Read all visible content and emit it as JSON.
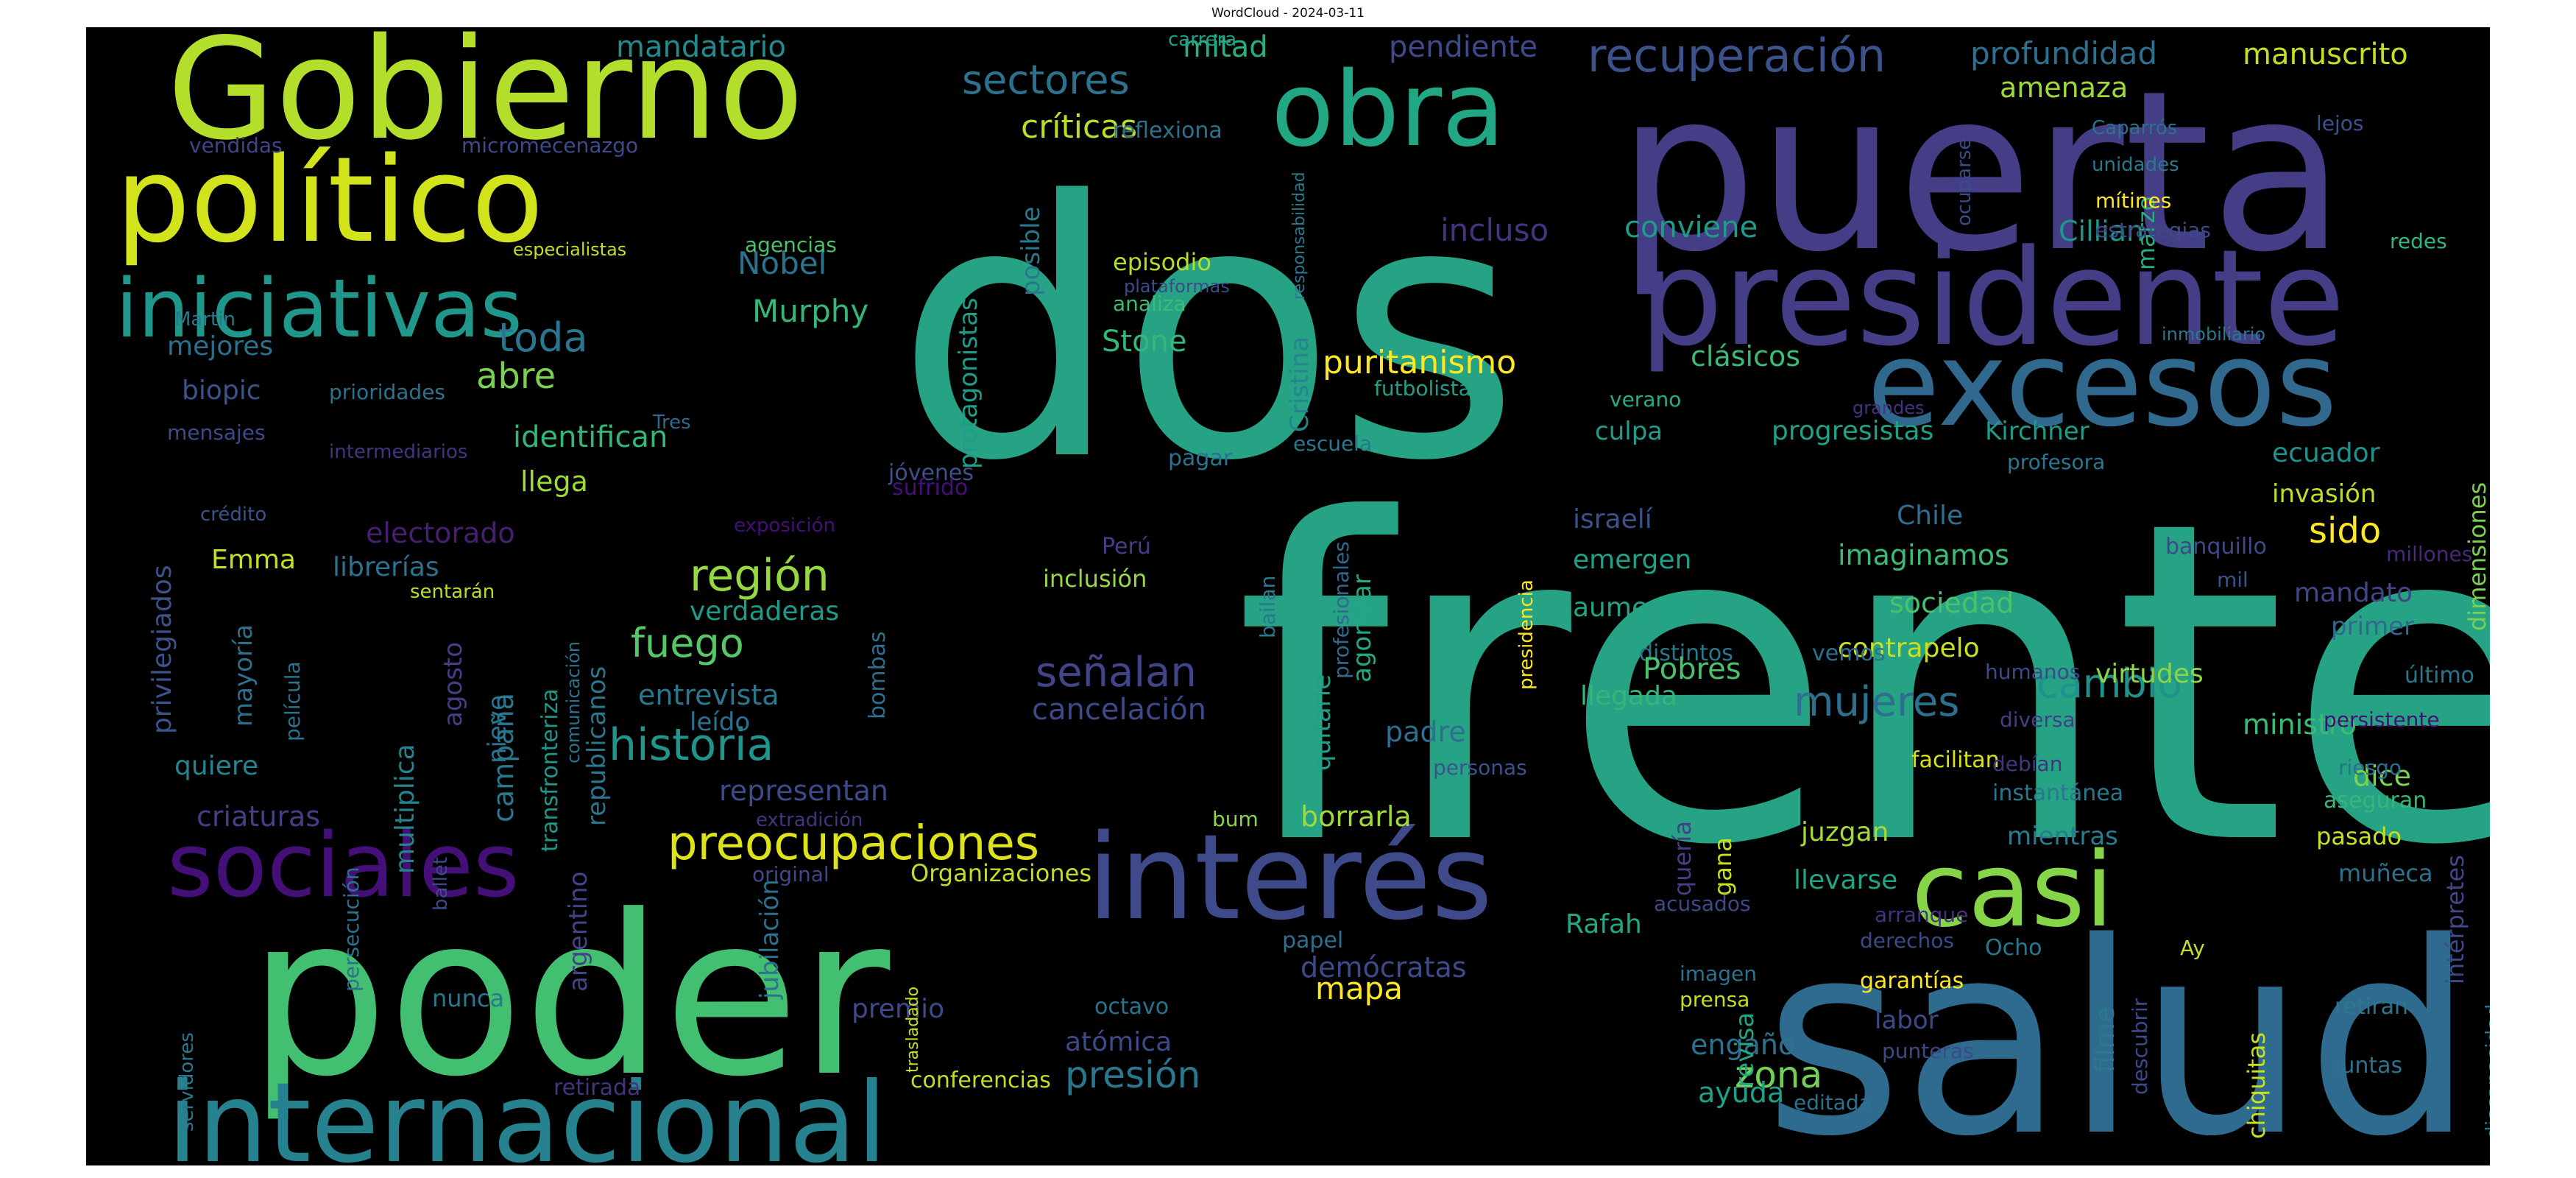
{
  "title": "WordCloud - 2024-03-11",
  "chart_data": {
    "type": "wordcloud",
    "background": "#000000",
    "words": [
      {
        "text": "frente",
        "color": "#26a285"
      },
      {
        "text": "dos",
        "color": "#26a285"
      },
      {
        "text": "salud",
        "color": "#2f6b8e"
      },
      {
        "text": "puerta",
        "color": "#433e85"
      },
      {
        "text": "poder",
        "color": "#43bf71"
      },
      {
        "text": "presidente",
        "color": "#433e85"
      },
      {
        "text": "Gobierno",
        "color": "#b4de2c"
      },
      {
        "text": "interés",
        "color": "#3e4a89"
      },
      {
        "text": "político",
        "color": "#d2e21b"
      },
      {
        "text": "excesos",
        "color": "#31688e"
      },
      {
        "text": "internacional",
        "color": "#26828e"
      },
      {
        "text": "obra",
        "color": "#22a785"
      },
      {
        "text": "casi",
        "color": "#86d549"
      },
      {
        "text": "sociales",
        "color": "#440f76"
      },
      {
        "text": "iniciativas",
        "color": "#1f988b"
      },
      {
        "text": "preocupaciones",
        "color": "#dde318"
      },
      {
        "text": "recuperación",
        "color": "#3b528b"
      },
      {
        "text": "historia",
        "color": "#1f958b"
      },
      {
        "text": "región",
        "color": "#95d840"
      },
      {
        "text": "mujeres",
        "color": "#2d708e"
      },
      {
        "text": "señalan",
        "color": "#414487"
      },
      {
        "text": "sectores",
        "color": "#2c728e"
      },
      {
        "text": "toda",
        "color": "#2a768e"
      },
      {
        "text": "fuego",
        "color": "#56c667"
      },
      {
        "text": "cambio",
        "color": "#21918c"
      },
      {
        "text": "presión",
        "color": "#2a788e"
      },
      {
        "text": "zona",
        "color": "#73d056"
      },
      {
        "text": "críticas",
        "color": "#b8de29"
      },
      {
        "text": "abre",
        "color": "#7ad151"
      },
      {
        "text": "puritanismo",
        "color": "#fde725"
      },
      {
        "text": "Murphy",
        "color": "#35b779"
      },
      {
        "text": "Nobel",
        "color": "#2c728e"
      },
      {
        "text": "mapa",
        "color": "#fde725"
      },
      {
        "text": "profundidad",
        "color": "#2e6f8e"
      },
      {
        "text": "manuscrito",
        "color": "#c0df25"
      },
      {
        "text": "pendiente",
        "color": "#3e4989"
      },
      {
        "text": "mitad",
        "color": "#29af7f"
      },
      {
        "text": "mandatario",
        "color": "#238a8d"
      },
      {
        "text": "amenaza",
        "color": "#9dd93b"
      },
      {
        "text": "conviene",
        "color": "#1e9b8a"
      },
      {
        "text": "incluso",
        "color": "#46337e"
      },
      {
        "text": "clásicos",
        "color": "#3bbb75"
      },
      {
        "text": "Cristina",
        "color": "#25848e"
      },
      {
        "text": "protagonistas",
        "color": "#1e9d89"
      },
      {
        "text": "posible",
        "color": "#29798e"
      },
      {
        "text": "Stone",
        "color": "#35b779"
      },
      {
        "text": "episodio",
        "color": "#b5de2b"
      },
      {
        "text": "analiza",
        "color": "#3dbc74"
      },
      {
        "text": "identifican",
        "color": "#34b679"
      },
      {
        "text": "campaña",
        "color": "#2a788e"
      },
      {
        "text": "multiplica",
        "color": "#26828e"
      },
      {
        "text": "agonizar",
        "color": "#22a884"
      },
      {
        "text": "quitarle",
        "color": "#1fa088"
      },
      {
        "text": "padre",
        "color": "#2e6e8e"
      },
      {
        "text": "bombas",
        "color": "#2e6e8e"
      },
      {
        "text": "verdaderas",
        "color": "#1e9b8a"
      },
      {
        "text": "entrevista",
        "color": "#2a788e"
      },
      {
        "text": "leído",
        "color": "#2d708e"
      },
      {
        "text": "representan",
        "color": "#3e4a89"
      },
      {
        "text": "cancelación",
        "color": "#3e4989"
      },
      {
        "text": "borrarla",
        "color": "#9fda3a"
      },
      {
        "text": "juzgan",
        "color": "#a2da37"
      },
      {
        "text": "mientras",
        "color": "#287c8e"
      },
      {
        "text": "llevarse",
        "color": "#20a386"
      },
      {
        "text": "Rafah",
        "color": "#22a884"
      },
      {
        "text": "emergen",
        "color": "#1fa088"
      },
      {
        "text": "aumenta",
        "color": "#21a685"
      },
      {
        "text": "llegada",
        "color": "#34b679"
      },
      {
        "text": "israelí",
        "color": "#3b528b"
      },
      {
        "text": "culpa",
        "color": "#1f9e89"
      },
      {
        "text": "progresistas",
        "color": "#1fa188"
      },
      {
        "text": "Kirchner",
        "color": "#1e9c89"
      },
      {
        "text": "imaginamos",
        "color": "#3bbb75"
      },
      {
        "text": "Chile",
        "color": "#2e6e8e"
      },
      {
        "text": "sociedad",
        "color": "#4ac16d"
      },
      {
        "text": "contrapelo",
        "color": "#c8e020"
      },
      {
        "text": "vemos",
        "color": "#2c718e"
      },
      {
        "text": "ecuador",
        "color": "#21908d"
      },
      {
        "text": "invasión",
        "color": "#bddf26"
      },
      {
        "text": "sido",
        "color": "#fde725"
      },
      {
        "text": "mandato",
        "color": "#404688"
      },
      {
        "text": "primer",
        "color": "#31688e"
      },
      {
        "text": "virtudes",
        "color": "#8bd646"
      },
      {
        "text": "ministro",
        "color": "#3bbb75"
      },
      {
        "text": "dice",
        "color": "#7fd34e"
      },
      {
        "text": "dimensiones",
        "color": "#7ad151"
      },
      {
        "text": "marzo",
        "color": "#29af7f"
      },
      {
        "text": "Cillian",
        "color": "#1f988b"
      },
      {
        "text": "ocuparse",
        "color": "#3e4a89"
      },
      {
        "text": "Caparrós",
        "color": "#2c728e"
      },
      {
        "text": "unidades",
        "color": "#2a788e"
      },
      {
        "text": "mítines",
        "color": "#fde725"
      },
      {
        "text": "estrategias",
        "color": "#3e4989"
      },
      {
        "text": "lejos",
        "color": "#3b528b"
      },
      {
        "text": "redes",
        "color": "#35b779"
      },
      {
        "text": "inmobiliario",
        "color": "#2a778e"
      },
      {
        "text": "reflexiona",
        "color": "#2c728e"
      },
      {
        "text": "carrera",
        "color": "#1fa187"
      },
      {
        "text": "biopic",
        "color": "#3b528b"
      },
      {
        "text": "mejores",
        "color": "#2d708e"
      },
      {
        "text": "mensajes",
        "color": "#3e4a89"
      },
      {
        "text": "prioridades",
        "color": "#2c728e"
      },
      {
        "text": "intermediarios",
        "color": "#46337e"
      },
      {
        "text": "Tres",
        "color": "#31688e"
      },
      {
        "text": "llega",
        "color": "#a0da39"
      },
      {
        "text": "electorado",
        "color": "#481f70"
      },
      {
        "text": "librerías",
        "color": "#2c728e"
      },
      {
        "text": "Emma",
        "color": "#c2df23"
      },
      {
        "text": "privilegiados",
        "color": "#3b528b"
      },
      {
        "text": "mayoría",
        "color": "#2e6f8e"
      },
      {
        "text": "película",
        "color": "#2c728e"
      },
      {
        "text": "quiere",
        "color": "#25848e"
      },
      {
        "text": "criaturas",
        "color": "#433e85"
      },
      {
        "text": "agosto",
        "color": "#433e85"
      },
      {
        "text": "nieve",
        "color": "#2c728e"
      },
      {
        "text": "republicanos",
        "color": "#2a788e"
      },
      {
        "text": "transfronteriza",
        "color": "#1f988b"
      },
      {
        "text": "comunicación",
        "color": "#2c728e"
      },
      {
        "text": "sentarán",
        "color": "#b5de2b"
      },
      {
        "text": "ballet",
        "color": "#3e4989"
      },
      {
        "text": "especialistas",
        "color": "#c2df23"
      },
      {
        "text": "micromecenazgo",
        "color": "#3e4a89"
      },
      {
        "text": "vendidas",
        "color": "#414487"
      },
      {
        "text": "Martin",
        "color": "#2a788e"
      },
      {
        "text": "crédito",
        "color": "#3b528b"
      },
      {
        "text": "agencias",
        "color": "#4ac16d"
      },
      {
        "text": "plataformas",
        "color": "#3e4a89"
      },
      {
        "text": "responsabilidad",
        "color": "#2a788e"
      },
      {
        "text": "futbolista",
        "color": "#1fa088"
      },
      {
        "text": "verano",
        "color": "#27ad81"
      },
      {
        "text": "escuela",
        "color": "#2a788e"
      },
      {
        "text": "pagar",
        "color": "#2c728e"
      },
      {
        "text": "jóvenes",
        "color": "#3b528b"
      },
      {
        "text": "sufrido",
        "color": "#440f76"
      },
      {
        "text": "exposición",
        "color": "#440f76"
      },
      {
        "text": "Perú",
        "color": "#433e85"
      },
      {
        "text": "inclusión",
        "color": "#95d840"
      },
      {
        "text": "bailan",
        "color": "#2a788e"
      },
      {
        "text": "profesionales",
        "color": "#31688e"
      },
      {
        "text": "presidencia",
        "color": "#fde725"
      },
      {
        "text": "personas",
        "color": "#3b528b"
      },
      {
        "text": "distintos",
        "color": "#2a788e"
      },
      {
        "text": "Pobres",
        "color": "#4ac16d"
      },
      {
        "text": "humanos",
        "color": "#3e4989"
      },
      {
        "text": "diversa",
        "color": "#433e85"
      },
      {
        "text": "facilitan",
        "color": "#d8e219"
      },
      {
        "text": "debían",
        "color": "#46337e"
      },
      {
        "text": "persistente",
        "color": "#440f76"
      },
      {
        "text": "riesgo",
        "color": "#2c728e"
      },
      {
        "text": "instantánea",
        "color": "#29798e"
      },
      {
        "text": "aseguran",
        "color": "#35b779"
      },
      {
        "text": "pasado",
        "color": "#c8e020"
      },
      {
        "text": "muñeca",
        "color": "#2c728e"
      },
      {
        "text": "último",
        "color": "#2a788e"
      },
      {
        "text": "banquillo",
        "color": "#3e4989"
      },
      {
        "text": "millones",
        "color": "#482878"
      },
      {
        "text": "mil",
        "color": "#3b528b"
      },
      {
        "text": "profesora",
        "color": "#2a788e"
      },
      {
        "text": "grandes",
        "color": "#46337e"
      },
      {
        "text": "extradición",
        "color": "#46337e"
      },
      {
        "text": "original",
        "color": "#3e4989"
      },
      {
        "text": "Organizaciones",
        "color": "#c2df23"
      },
      {
        "text": "jubilación",
        "color": "#2c728e"
      },
      {
        "text": "argentino",
        "color": "#414487"
      },
      {
        "text": "persecución",
        "color": "#2c728e"
      },
      {
        "text": "servidores",
        "color": "#2a788e"
      },
      {
        "text": "retirada",
        "color": "#46337e"
      },
      {
        "text": "nunca",
        "color": "#2a788e"
      },
      {
        "text": "premio",
        "color": "#3e4989"
      },
      {
        "text": "trasladado",
        "color": "#c8e020"
      },
      {
        "text": "conferencias",
        "color": "#c2df23"
      },
      {
        "text": "atómica",
        "color": "#3e4989"
      },
      {
        "text": "octavo",
        "color": "#2c728e"
      },
      {
        "text": "papel",
        "color": "#2e6f8e"
      },
      {
        "text": "demócratas",
        "color": "#3e4989"
      },
      {
        "text": "bum",
        "color": "#8bd646"
      },
      {
        "text": "engaño",
        "color": "#2c728e"
      },
      {
        "text": "ayuda",
        "color": "#1fa088"
      },
      {
        "text": "imagen",
        "color": "#2c728e"
      },
      {
        "text": "prensa",
        "color": "#c2df23"
      },
      {
        "text": "revisa",
        "color": "#21a685"
      },
      {
        "text": "quería",
        "color": "#433e85"
      },
      {
        "text": "gana",
        "color": "#c8e020"
      },
      {
        "text": "acusados",
        "color": "#3e4989"
      },
      {
        "text": "labor",
        "color": "#3e4989"
      },
      {
        "text": "punteras",
        "color": "#3e4989"
      },
      {
        "text": "filme",
        "color": "#2a788e"
      },
      {
        "text": "descubrir",
        "color": "#3e4989"
      },
      {
        "text": "editada",
        "color": "#2c728e"
      },
      {
        "text": "garantías",
        "color": "#fde725"
      },
      {
        "text": "derechos",
        "color": "#3e4989"
      },
      {
        "text": "arranque",
        "color": "#46337e"
      },
      {
        "text": "Ocho",
        "color": "#2a788e"
      },
      {
        "text": "chiquitas",
        "color": "#c8e020"
      },
      {
        "text": "Ay",
        "color": "#c2df23"
      },
      {
        "text": "intérpretes",
        "color": "#3e4989"
      },
      {
        "text": "discapacidad",
        "color": "#2c728e"
      },
      {
        "text": "digitales",
        "color": "#2a788e"
      },
      {
        "text": "retiran",
        "color": "#2a788e"
      },
      {
        "text": "juntas",
        "color": "#2c728e"
      }
    ]
  }
}
